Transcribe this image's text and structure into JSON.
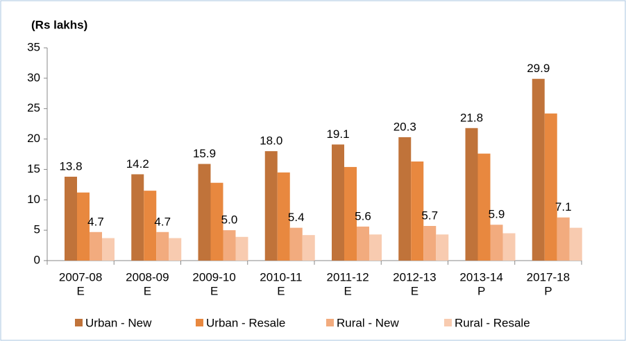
{
  "chart_data": {
    "type": "bar",
    "y_axis_label": "(Rs lakhs)",
    "categories": [
      [
        "2007-08",
        "E"
      ],
      [
        "2008-09",
        "E"
      ],
      [
        "2009-10",
        "E"
      ],
      [
        "2010-11",
        "E"
      ],
      [
        "2011-12",
        "E"
      ],
      [
        "2012-13",
        "E"
      ],
      [
        "2013-14",
        "P"
      ],
      [
        "2017-18",
        "P"
      ]
    ],
    "series": [
      {
        "name": "Urban - New",
        "color": "#c0733a",
        "values": [
          13.8,
          14.2,
          15.9,
          18.0,
          19.1,
          20.3,
          21.8,
          29.9
        ],
        "value_labels": [
          "13.8",
          "14.2",
          "15.9",
          "18.0",
          "19.1",
          "20.3",
          "21.8",
          "29.9"
        ]
      },
      {
        "name": "Urban - Resale",
        "color": "#e8883f",
        "values": [
          11.2,
          11.5,
          12.8,
          14.5,
          15.4,
          16.3,
          17.6,
          24.2
        ]
      },
      {
        "name": "Rural - New",
        "color": "#f2ab7e",
        "values": [
          4.7,
          4.7,
          5.0,
          5.4,
          5.6,
          5.7,
          5.9,
          7.1
        ],
        "value_labels": [
          "4.7",
          "4.7",
          "5.0",
          "5.4",
          "5.6",
          "5.7",
          "5.9",
          "7.1"
        ]
      },
      {
        "name": "Rural - Resale",
        "color": "#f8cbb0",
        "values": [
          3.7,
          3.7,
          3.9,
          4.2,
          4.3,
          4.3,
          4.5,
          5.4
        ]
      }
    ],
    "ylim": [
      0,
      35
    ],
    "yticks": [
      0,
      5,
      10,
      15,
      20,
      25,
      30,
      35
    ],
    "legend": "bottom"
  }
}
